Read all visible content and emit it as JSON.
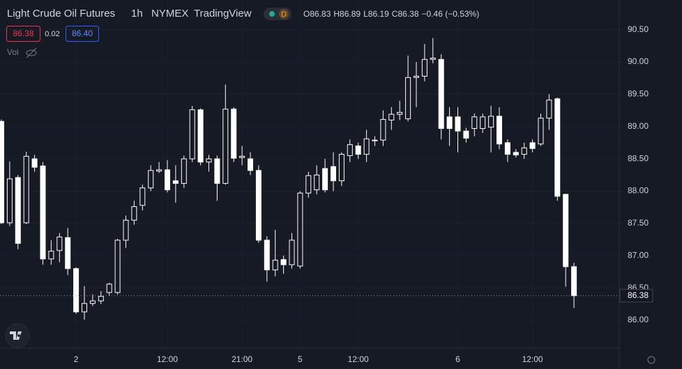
{
  "header": {
    "symbol": "Light Crude Oil Futures",
    "interval": "1h",
    "exchange": "NYMEX",
    "source": "TradingView",
    "badge": "D",
    "o_label": "O",
    "h_label": "H",
    "l_label": "L",
    "c_label": "C",
    "change": "−0.46 (−0.53%)",
    "bid": "86.38",
    "spread": "0.02",
    "ask": "86.40",
    "vol": "Vol"
  },
  "chart_data": {
    "type": "candlestick",
    "categories": [
      null,
      null,
      null,
      null,
      null,
      null,
      null,
      null,
      null,
      "2",
      null,
      null,
      null,
      null,
      null,
      null,
      null,
      null,
      null,
      null,
      "12:00",
      null,
      null,
      null,
      null,
      null,
      null,
      null,
      null,
      "21:00",
      null,
      null,
      null,
      null,
      null,
      null,
      "5",
      null,
      null,
      null,
      null,
      null,
      null,
      "12:00",
      null,
      null,
      null,
      null,
      null,
      null,
      null,
      null,
      null,
      null,
      null,
      "6",
      null,
      null,
      null,
      null,
      null,
      null,
      null,
      null,
      "12:00",
      null,
      null,
      null,
      null,
      null
    ],
    "open": [
      89.08,
      87.51,
      88.21,
      87.51,
      88.5,
      88.39,
      86.95,
      87.08,
      87.28,
      86.8,
      86.13,
      86.26,
      86.3,
      86.43,
      86.43,
      87.24,
      87.55,
      87.78,
      88.05,
      88.31,
      88.33,
      88.16,
      88.12,
      88.5,
      89.26,
      88.45,
      88.5,
      88.12,
      89.27,
      88.52,
      88.5,
      88.32,
      87.24,
      86.78,
      86.94,
      86.86,
      86.84,
      87.97,
      88.02,
      88.35,
      88.38,
      88.16,
      88.55,
      88.7,
      88.57,
      88.78,
      88.79,
      89.1,
      89.19,
      89.12,
      89.76,
      89.78,
      90.04,
      90.04,
      89.15,
      89.15,
      88.93,
      88.97,
      88.97,
      88.99,
      89.16,
      88.75,
      88.6,
      88.57,
      88.75,
      88.73,
      89.13,
      89.43,
      87.95,
      86.83
    ],
    "high": [
      89.11,
      88.46,
      88.25,
      88.61,
      88.56,
      88.45,
      87.24,
      87.35,
      87.43,
      86.82,
      86.53,
      86.4,
      86.45,
      86.58,
      87.26,
      87.62,
      87.85,
      88.1,
      88.4,
      88.45,
      88.48,
      88.4,
      88.55,
      89.32,
      89.28,
      88.56,
      88.55,
      89.65,
      89.3,
      88.7,
      88.6,
      88.4,
      87.3,
      87.4,
      87.0,
      87.35,
      88.0,
      88.3,
      88.4,
      88.5,
      88.6,
      88.6,
      88.8,
      88.75,
      88.95,
      88.85,
      89.25,
      89.3,
      89.4,
      90.1,
      90.0,
      90.28,
      90.37,
      90.12,
      89.3,
      89.3,
      88.98,
      89.2,
      89.2,
      89.32,
      89.3,
      88.8,
      88.65,
      88.75,
      88.8,
      89.2,
      89.5,
      89.45,
      87.96,
      86.89
    ],
    "low": [
      87.49,
      87.46,
      87.1,
      87.49,
      88.3,
      86.86,
      86.86,
      86.9,
      86.7,
      86.1,
      86.01,
      86.22,
      86.25,
      86.38,
      86.4,
      87.12,
      87.48,
      87.7,
      88.0,
      88.28,
      87.98,
      87.82,
      88.05,
      88.45,
      88.4,
      88.3,
      87.85,
      88.1,
      88.45,
      88.4,
      88.25,
      87.2,
      86.6,
      86.68,
      86.72,
      86.8,
      86.8,
      87.9,
      87.95,
      87.98,
      88.0,
      88.08,
      88.45,
      88.5,
      88.45,
      88.7,
      88.7,
      88.95,
      89.1,
      89.08,
      89.3,
      89.7,
      89.98,
      88.8,
      88.7,
      88.6,
      88.75,
      88.85,
      88.9,
      88.6,
      88.65,
      88.45,
      88.52,
      88.5,
      88.6,
      88.7,
      88.95,
      87.85,
      86.52,
      86.19
    ],
    "close": [
      87.51,
      88.19,
      87.19,
      88.54,
      88.37,
      86.95,
      87.07,
      87.29,
      86.8,
      86.13,
      86.26,
      86.3,
      86.37,
      86.56,
      87.24,
      87.55,
      87.76,
      88.05,
      88.32,
      88.33,
      88.02,
      88.12,
      88.5,
      89.26,
      88.45,
      88.5,
      88.12,
      89.27,
      88.51,
      88.54,
      88.32,
      87.24,
      86.78,
      86.93,
      86.86,
      87.24,
      87.97,
      88.24,
      88.25,
      88.02,
      88.16,
      88.57,
      88.72,
      88.57,
      88.81,
      88.79,
      89.11,
      89.19,
      89.22,
      89.76,
      89.78,
      90.04,
      90.06,
      88.97,
      88.97,
      88.93,
      88.82,
      89.15,
      89.15,
      89.16,
      88.73,
      88.57,
      88.56,
      88.67,
      88.66,
      89.13,
      89.41,
      87.92,
      86.83,
      86.38
    ],
    "color": "#ffffff",
    "ylim": [
      85.59,
      90.96
    ],
    "yticks": [
      {
        "value": 86,
        "label": "86.00"
      },
      {
        "value": 86.5,
        "label": "86.50"
      },
      {
        "value": 87,
        "label": "87.00"
      },
      {
        "value": 87.5,
        "label": "87.50"
      },
      {
        "value": 88,
        "label": "88.00"
      },
      {
        "value": 88.5,
        "label": "88.50"
      },
      {
        "value": 89,
        "label": "89.00"
      },
      {
        "value": 89.5,
        "label": "89.50"
      },
      {
        "value": 90,
        "label": "90.00"
      },
      {
        "value": 90.5,
        "label": "90.50"
      }
    ],
    "grid": true
  }
}
